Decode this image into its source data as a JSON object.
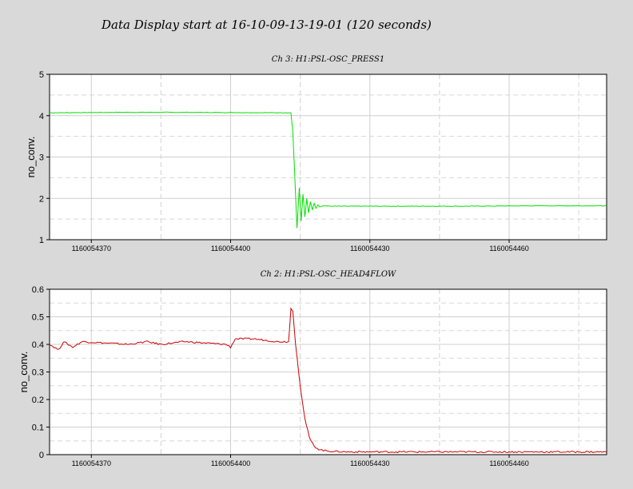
{
  "title": "Data Display start at 16-10-09-13-19-01 (120 seconds)",
  "chart_data": [
    {
      "type": "line",
      "title": "Ch 3: H1:PSL-OSC_PRESS1",
      "ylabel": "no_conv.",
      "xlim": [
        1160054361,
        1160054481
      ],
      "ylim": [
        1,
        5
      ],
      "yticks": [
        1,
        2,
        3,
        4,
        5
      ],
      "xticks": [
        1160054370,
        1160054400,
        1160054430,
        1160054460
      ],
      "grid": true,
      "color": "#00e000",
      "series": [
        {
          "x": [
            1160054361,
            1160054375,
            1160054390,
            1160054413,
            1160054413.4,
            1160054413.8,
            1160054414.3,
            1160054414.8,
            1160054415.2,
            1160054415.6,
            1160054416,
            1160054416.4,
            1160054416.8,
            1160054417.2,
            1160054417.6,
            1160054418,
            1160054418.4,
            1160054418.8,
            1160054419.2,
            1160054420,
            1160054422,
            1160054450,
            1160054466,
            1160054481
          ],
          "y": [
            4.07,
            4.08,
            4.08,
            4.07,
            3.6,
            2.6,
            1.28,
            2.25,
            1.45,
            2.1,
            1.55,
            2.0,
            1.65,
            1.92,
            1.72,
            1.88,
            1.76,
            1.84,
            1.79,
            1.82,
            1.81,
            1.81,
            1.82,
            1.82
          ]
        }
      ]
    },
    {
      "type": "line",
      "title": "Ch 2: H1:PSL-OSC_HEAD4FLOW",
      "ylabel": "no_conv.",
      "xlim": [
        1160054361,
        1160054481
      ],
      "ylim": [
        0,
        0.6
      ],
      "yticks": [
        0,
        0.1,
        0.2,
        0.3,
        0.4,
        0.5,
        0.6
      ],
      "xticks": [
        1160054370,
        1160054400,
        1160054430,
        1160054460
      ],
      "grid": true,
      "color": "#cc0000",
      "series": [
        {
          "x": [
            1160054361,
            1160054363,
            1160054364,
            1160054366,
            1160054368,
            1160054378,
            1160054382,
            1160054385,
            1160054390,
            1160054399,
            1160054400,
            1160054401,
            1160054405,
            1160054410,
            1160054412.5,
            1160054413,
            1160054413.4,
            1160054414,
            1160054415,
            1160054416,
            1160054417,
            1160054418,
            1160054419,
            1160054420,
            1160054422,
            1160054425,
            1160054435,
            1160054481
          ],
          "y": [
            0.4,
            0.38,
            0.41,
            0.39,
            0.41,
            0.4,
            0.41,
            0.4,
            0.41,
            0.4,
            0.39,
            0.42,
            0.42,
            0.41,
            0.41,
            0.53,
            0.52,
            0.4,
            0.25,
            0.13,
            0.06,
            0.03,
            0.02,
            0.015,
            0.012,
            0.01,
            0.01,
            0.01
          ]
        }
      ]
    }
  ]
}
